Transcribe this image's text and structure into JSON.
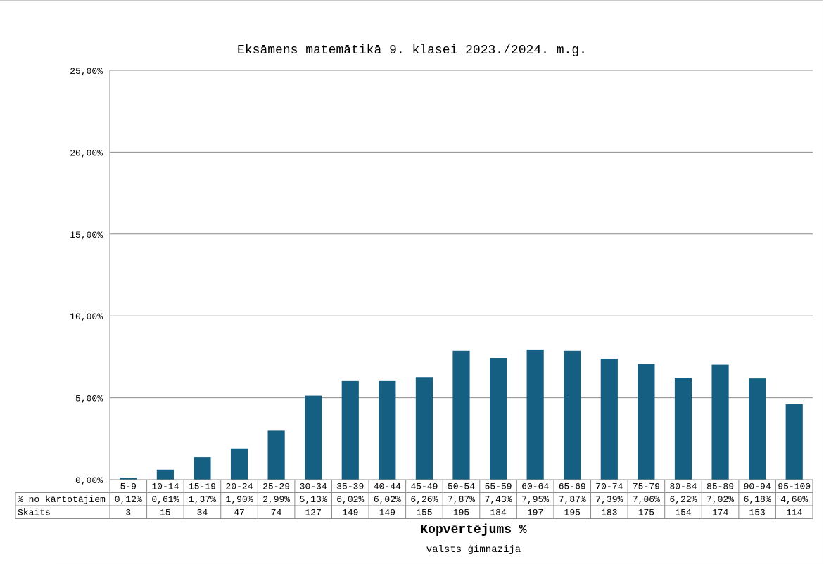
{
  "chart_data": {
    "type": "bar",
    "title": "Eksāmens matemātikā 9. klasei 2023./2024. m.g.",
    "xlabel": "Kopvērtējums %",
    "subtitle": "valsts ģimnāzija",
    "ylim": [
      0,
      25
    ],
    "yticks": [
      "0,00%",
      "5,00%",
      "10,00%",
      "15,00%",
      "20,00%",
      "25,00%"
    ],
    "grid": true,
    "bar_color": "#156082",
    "categories": [
      "5-9",
      "10-14",
      "15-19",
      "20-24",
      "25-29",
      "30-34",
      "35-39",
      "40-44",
      "45-49",
      "50-54",
      "55-59",
      "60-64",
      "65-69",
      "70-74",
      "75-79",
      "80-84",
      "85-89",
      "90-94",
      "95-100"
    ],
    "values": [
      0.12,
      0.61,
      1.37,
      1.9,
      2.99,
      5.13,
      6.02,
      6.02,
      6.26,
      7.87,
      7.43,
      7.95,
      7.87,
      7.39,
      7.06,
      6.22,
      7.02,
      6.18,
      4.6
    ],
    "table": {
      "rows": [
        {
          "label": "% no kārtotājiem",
          "cells": [
            "0,12%",
            "0,61%",
            "1,37%",
            "1,90%",
            "2,99%",
            "5,13%",
            "6,02%",
            "6,02%",
            "6,26%",
            "7,87%",
            "7,43%",
            "7,95%",
            "7,87%",
            "7,39%",
            "7,06%",
            "6,22%",
            "7,02%",
            "6,18%",
            "4,60%"
          ]
        },
        {
          "label": "Skaits",
          "cells": [
            "3",
            "15",
            "34",
            "47",
            "74",
            "127",
            "149",
            "149",
            "155",
            "195",
            "184",
            "197",
            "195",
            "183",
            "175",
            "154",
            "174",
            "153",
            "114"
          ]
        }
      ]
    }
  }
}
